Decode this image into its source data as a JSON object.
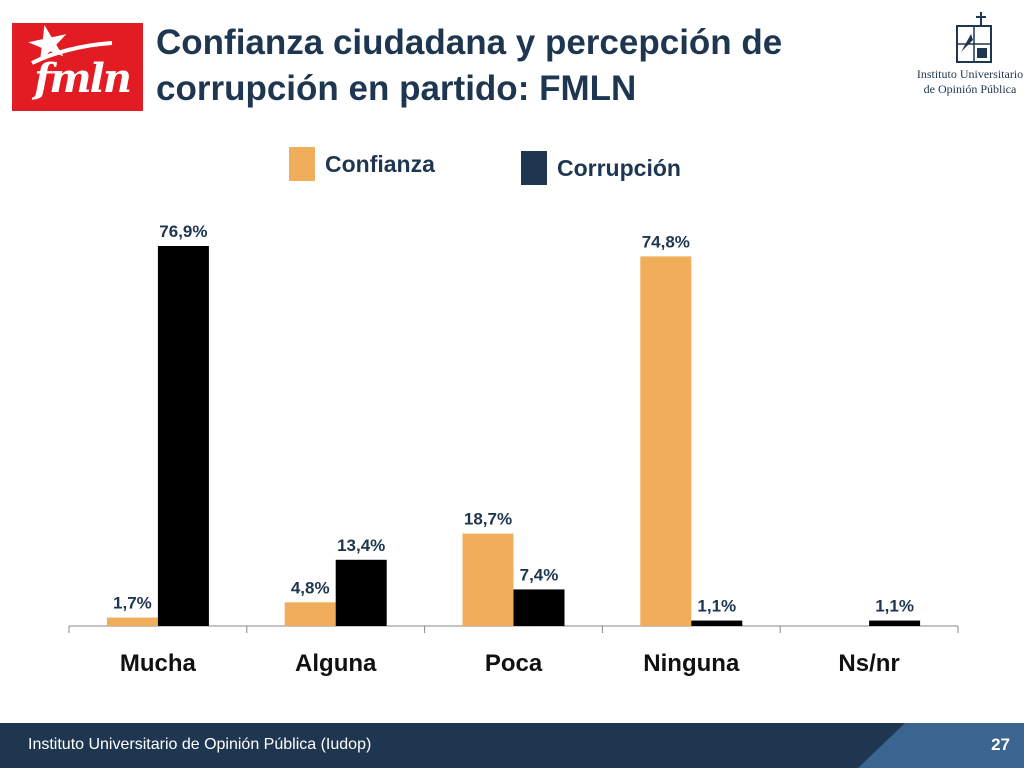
{
  "logo": {
    "text": "fmln"
  },
  "header": {
    "title_line1": "Confianza ciudadana y percepción de",
    "title_line2": "corrupción en partido: FMLN"
  },
  "institute": {
    "name_line1": "Instituto Universitario",
    "name_line2": "de Opinión Pública"
  },
  "colors": {
    "confianza": "#f0ae5b",
    "corrupcion": "#000000",
    "legend_corrupcion": "#1e3650",
    "brand_red": "#e31b23",
    "navy": "#1e3650",
    "footer_accent": "#3c6491"
  },
  "chart_data": {
    "type": "bar",
    "categories": [
      "Mucha",
      "Alguna",
      "Poca",
      "Ninguna",
      "Ns/nr"
    ],
    "series": [
      {
        "name": "Confianza",
        "values": [
          1.7,
          4.8,
          18.7,
          74.8,
          null
        ],
        "labels": [
          "1,7%",
          "4,8%",
          "18,7%",
          "74,8%",
          ""
        ]
      },
      {
        "name": "Corrupción",
        "values": [
          76.9,
          13.4,
          7.4,
          1.1,
          1.1
        ],
        "labels": [
          "76,9%",
          "13,4%",
          "7,4%",
          "1,1%",
          "1,1%"
        ]
      }
    ],
    "ylim": [
      0,
      80
    ],
    "legend_position": "top",
    "grid": false
  },
  "footer": {
    "text": "Instituto Universitario de Opinión Pública (Iudop)",
    "page": "27"
  }
}
